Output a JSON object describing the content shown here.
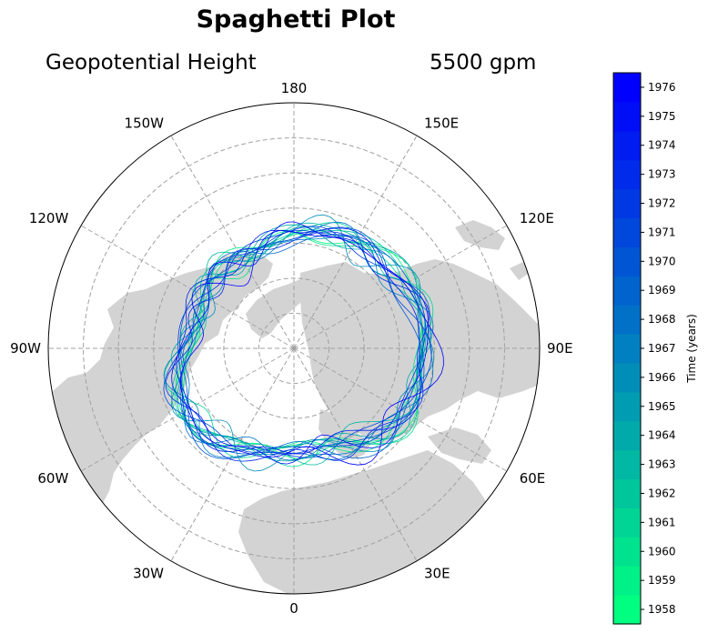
{
  "figure": {
    "title": "Spaghetti Plot",
    "subtitle_left": "Geopotential Height",
    "subtitle_right": "5500 gpm"
  },
  "map": {
    "projection": "north-polar-stereographic",
    "land_color": "#d3d3d3",
    "grid_color": "#a0a0a0",
    "longitude_labels": [
      "180",
      "150E",
      "120E",
      "90E",
      "60E",
      "30E",
      "0",
      "150W",
      "120W",
      "90W",
      "60W",
      "30W"
    ],
    "latitude_rings": [
      80,
      70,
      60,
      50,
      40,
      30,
      20
    ],
    "extent_south": 20
  },
  "colorbar": {
    "label": "Time (years)",
    "ticks": [
      "1958",
      "1959",
      "1960",
      "1961",
      "1962",
      "1963",
      "1964",
      "1965",
      "1966",
      "1967",
      "1968",
      "1969",
      "1970",
      "1971",
      "1972",
      "1973",
      "1974",
      "1975",
      "1976"
    ],
    "color_start": "#00ff80",
    "color_end": "#0000ff"
  },
  "chart_data": {
    "type": "map",
    "variable": "Geopotential Height",
    "contour_level": "5500 gpm",
    "years": [
      1958,
      1959,
      1960,
      1961,
      1962,
      1963,
      1964,
      1965,
      1966,
      1967,
      1968,
      1969,
      1970,
      1971,
      1972,
      1973,
      1974,
      1975,
      1976
    ],
    "colormap": "winter_r"
  }
}
